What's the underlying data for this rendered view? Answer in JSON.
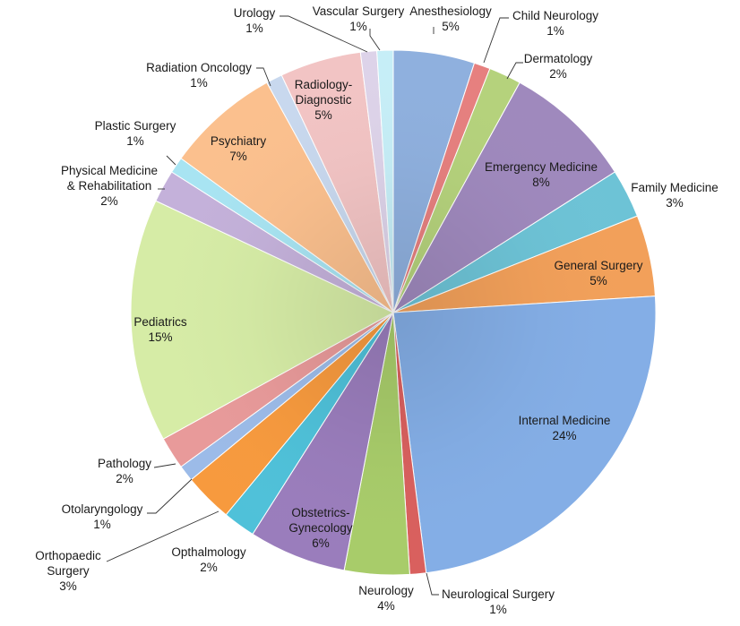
{
  "chart_data": {
    "type": "pie",
    "title": "",
    "slices": [
      {
        "label": "Anesthesiology",
        "value": 5,
        "pct": "5%",
        "color": "#8fb0de"
      },
      {
        "label": "Child Neurology",
        "value": 1,
        "pct": "1%",
        "color": "#e6807f"
      },
      {
        "label": "Dermatology",
        "value": 2,
        "pct": "2%",
        "color": "#b5d27c"
      },
      {
        "label": "Emergency Medicine",
        "value": 8,
        "pct": "8%",
        "color": "#9f89bd"
      },
      {
        "label": "Family Medicine",
        "value": 3,
        "pct": "3%",
        "color": "#6dc3d6"
      },
      {
        "label": "General Surgery",
        "value": 5,
        "pct": "5%",
        "color": "#f2a05a"
      },
      {
        "label": "Internal Medicine",
        "value": 24,
        "pct": "24%",
        "color": "#84aee6"
      },
      {
        "label": "Neurological Surgery",
        "value": 1,
        "pct": "1%",
        "color": "#d9605e"
      },
      {
        "label": "Neurology",
        "value": 4,
        "pct": "4%",
        "color": "#a8cc6a"
      },
      {
        "label": "Obstetrics-\nGynecology",
        "value": 6,
        "pct": "6%",
        "color": "#9a7dbc"
      },
      {
        "label": "Opthalmology",
        "value": 2,
        "pct": "2%",
        "color": "#4fc1d9"
      },
      {
        "label": "Orthopaedic\nSurgery",
        "value": 3,
        "pct": "3%",
        "color": "#f79a3e"
      },
      {
        "label": "Otolaryngology",
        "value": 1,
        "pct": "1%",
        "color": "#9cbbe8"
      },
      {
        "label": "Pathology",
        "value": 2,
        "pct": "2%",
        "color": "#e89a9a"
      },
      {
        "label": "Pediatrics",
        "value": 15,
        "pct": "15%",
        "color": "#d6eca6"
      },
      {
        "label": "Physical Medicine\n& Rehabilitation",
        "value": 2,
        "pct": "2%",
        "color": "#c4b1da"
      },
      {
        "label": "Plastic Surgery",
        "value": 1,
        "pct": "1%",
        "color": "#a8e4f2"
      },
      {
        "label": "Psychiatry",
        "value": 7,
        "pct": "7%",
        "color": "#fbc08e"
      },
      {
        "label": "Radiation Oncology",
        "value": 1,
        "pct": "1%",
        "color": "#c8d8ee"
      },
      {
        "label": "Radiology-\nDiagnostic",
        "value": 5,
        "pct": "5%",
        "color": "#f2c4c4"
      },
      {
        "label": "Urology",
        "value": 1,
        "pct": "1%",
        "color": "#ddd3e9"
      },
      {
        "label": "Vascular Surgery",
        "value": 1,
        "pct": "1%",
        "color": "#c6eef7"
      }
    ]
  }
}
